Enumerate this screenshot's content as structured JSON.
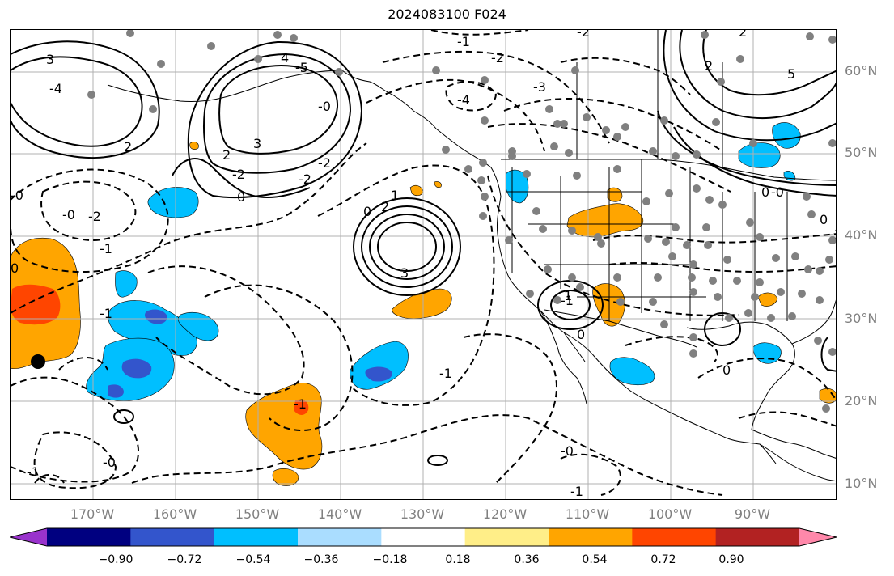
{
  "title": "2024083100 F024",
  "lat_labels": [
    "60°N",
    "50°N",
    "40°N",
    "30°N",
    "20°N",
    "10°N"
  ],
  "lon_labels": [
    "170°W",
    "160°W",
    "150°W",
    "140°W",
    "130°W",
    "120°W",
    "110°W",
    "100°W",
    "90°W"
  ],
  "colorbar": {
    "ticks": [
      "−0.90",
      "−0.72",
      "−0.54",
      "−0.36",
      "−0.18",
      "0.18",
      "0.36",
      "0.54",
      "0.72",
      "0.90"
    ],
    "colors": [
      "#9933cc",
      "#000080",
      "#3355cc",
      "#00bfff",
      "#aaddff",
      "#ffffff",
      "#ffee88",
      "#ffa500",
      "#ff4500",
      "#b22222",
      "#ff88aa"
    ]
  },
  "contour_labels": [
    {
      "text": "3"
    },
    {
      "text": "-4"
    },
    {
      "text": "-5"
    },
    {
      "text": "4"
    },
    {
      "text": "2"
    },
    {
      "text": "3"
    },
    {
      "text": "2"
    },
    {
      "text": "-3"
    },
    {
      "text": "-4"
    },
    {
      "text": "-2"
    },
    {
      "text": "-1"
    },
    {
      "text": "-2"
    },
    {
      "text": "-2"
    },
    {
      "text": "-2"
    },
    {
      "text": "-2"
    },
    {
      "text": "0"
    },
    {
      "text": "2"
    },
    {
      "text": "2"
    },
    {
      "text": "5"
    },
    {
      "text": "0"
    },
    {
      "text": "-2"
    },
    {
      "text": "-1"
    },
    {
      "text": "-0"
    },
    {
      "text": "-1"
    },
    {
      "text": "1"
    },
    {
      "text": "2"
    },
    {
      "text": "3"
    },
    {
      "text": "1"
    },
    {
      "text": "-1"
    },
    {
      "text": "0"
    },
    {
      "text": "-1"
    },
    {
      "text": "0"
    },
    {
      "text": "-1"
    },
    {
      "text": "-0"
    },
    {
      "text": "-1"
    },
    {
      "text": "-0"
    },
    {
      "text": "0"
    },
    {
      "text": "-0"
    },
    {
      "text": "-0"
    },
    {
      "text": "0"
    },
    {
      "text": "0"
    },
    {
      "text": "-0"
    },
    {
      "text": "-1"
    },
    {
      "text": "-1"
    }
  ]
}
